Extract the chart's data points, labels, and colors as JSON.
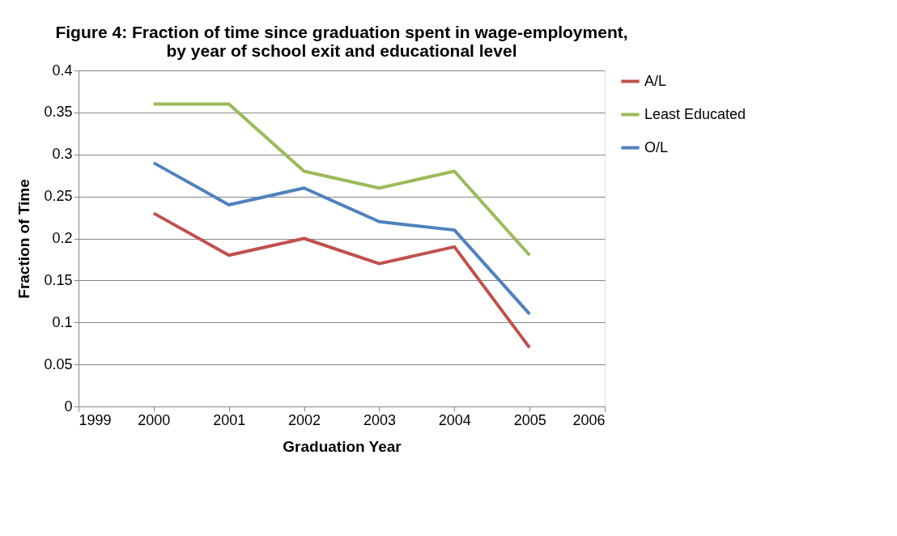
{
  "chart_data": {
    "type": "line",
    "title": "Figure 4: Fraction of time since graduation spent in wage-employment, by year of school exit and educational level",
    "xlabel": "Graduation Year",
    "ylabel": "Fraction of Time",
    "x": [
      2000,
      2001,
      2002,
      2003,
      2004,
      2005
    ],
    "series": [
      {
        "name": "A/L",
        "color": "#c0504d",
        "values": [
          0.23,
          0.18,
          0.2,
          0.17,
          0.19,
          0.07
        ]
      },
      {
        "name": "Least Educated",
        "color": "#9bbb59",
        "values": [
          0.36,
          0.36,
          0.28,
          0.26,
          0.28,
          0.18
        ]
      },
      {
        "name": "O/L",
        "color": "#4f81bd",
        "values": [
          0.29,
          0.24,
          0.26,
          0.22,
          0.21,
          0.11
        ]
      }
    ],
    "xlim": [
      1999,
      2006
    ],
    "xticks": [
      1999,
      2000,
      2001,
      2002,
      2003,
      2004,
      2005,
      2006
    ],
    "ylim": [
      0,
      0.4
    ],
    "yticks": [
      0,
      0.05,
      0.1,
      0.15,
      0.2,
      0.25,
      0.3,
      0.35,
      0.4
    ],
    "grid": "y",
    "legend": "right",
    "marker": "none",
    "line_style": "solid"
  }
}
